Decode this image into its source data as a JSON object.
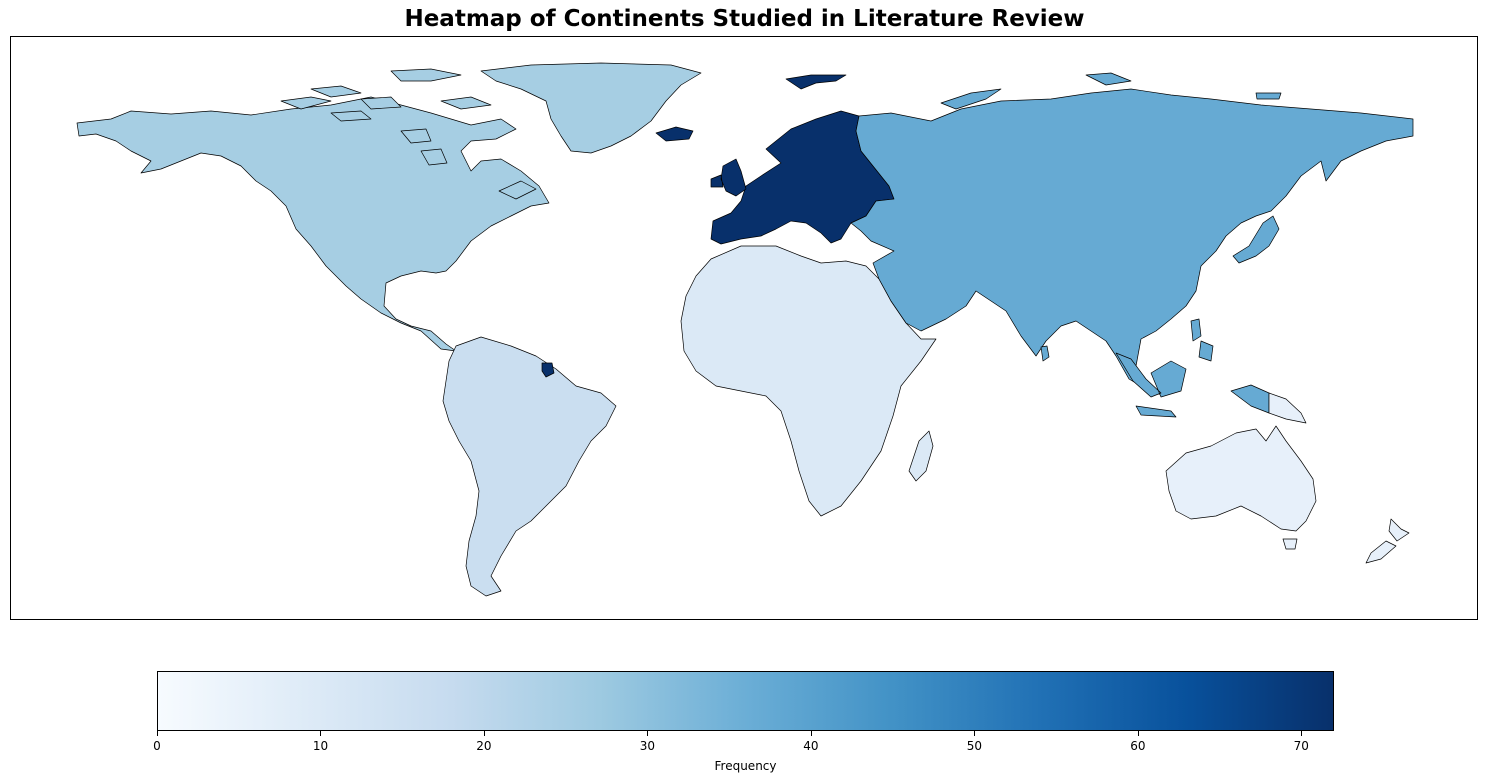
{
  "title": "Heatmap of Continents Studied in Literature Review",
  "colorbar": {
    "label": "Frequency",
    "min": 0,
    "max": 72,
    "ticks": [
      0,
      10,
      20,
      30,
      40,
      50,
      60,
      70
    ],
    "colormap": "Blues",
    "stops": [
      "#f7fbff",
      "#deebf7",
      "#c6dbef",
      "#9ecae1",
      "#6baed6",
      "#4292c6",
      "#2171b5",
      "#08519c",
      "#08306b"
    ]
  },
  "colors": {
    "europe": "#08306b",
    "asia": "#66aad3",
    "north_america": "#a6cee3",
    "south_america": "#cadef0",
    "africa": "#dbe9f6",
    "oceania": "#e7f0fa"
  },
  "regions": [
    {
      "id": "north-america",
      "color_key": "north_america"
    },
    {
      "id": "greenland",
      "color_key": "north_america"
    },
    {
      "id": "south-america",
      "color_key": "south_america"
    },
    {
      "id": "europe",
      "color_key": "europe"
    },
    {
      "id": "africa",
      "color_key": "africa"
    },
    {
      "id": "asia",
      "color_key": "asia"
    },
    {
      "id": "oceania",
      "color_key": "oceania"
    }
  ]
}
